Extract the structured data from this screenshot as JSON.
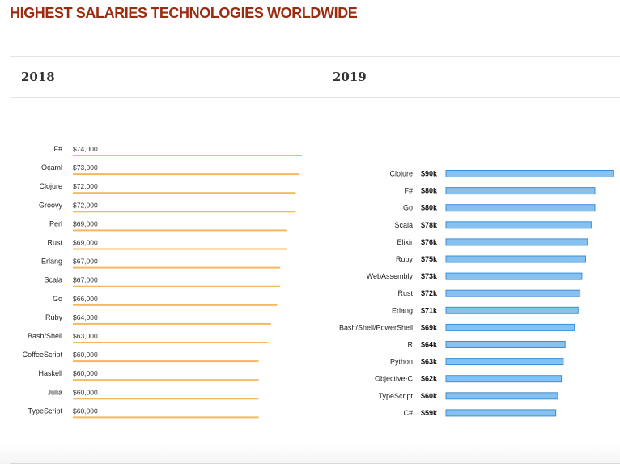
{
  "page": {
    "title": "HIGHEST SALARIES TECHNOLOGIES WORLDWIDE"
  },
  "colors": {
    "title": "#9b2c12",
    "bar_2018": "#f5b85f",
    "bar_2019_fill": "#86c1ef",
    "bar_2019_stroke": "#3d8fd8"
  },
  "chart_data": [
    {
      "type": "bar",
      "orientation": "horizontal",
      "title": "2018",
      "categories": [
        "F#",
        "Ocaml",
        "Clojure",
        "Groovy",
        "Perl",
        "Rust",
        "Erlang",
        "Scala",
        "Go",
        "Ruby",
        "Bash/Shell",
        "CoffeeScript",
        "Haskell",
        "Julia",
        "TypeScript"
      ],
      "values": [
        74000,
        73000,
        72000,
        72000,
        69000,
        69000,
        67000,
        67000,
        66000,
        64000,
        63000,
        60000,
        60000,
        60000,
        60000
      ],
      "value_labels": [
        "$74,000",
        "$73,000",
        "$72,000",
        "$72,000",
        "$69,000",
        "$69,000",
        "$67,000",
        "$67,000",
        "$66,000",
        "$64,000",
        "$63,000",
        "$60,000",
        "$60,000",
        "$60,000",
        "$60,000"
      ],
      "grid": false
    },
    {
      "type": "bar",
      "orientation": "horizontal",
      "title": "2019",
      "categories": [
        "Clojure",
        "F#",
        "Go",
        "Scala",
        "Elixir",
        "Ruby",
        "WebAssembly",
        "Rust",
        "Erlang",
        "Bash/Shell/PowerShell",
        "R",
        "Python",
        "Objective-C",
        "TypeScript",
        "C#"
      ],
      "values": [
        90,
        80,
        80,
        78,
        76,
        75,
        73,
        72,
        71,
        69,
        64,
        63,
        62,
        60,
        59
      ],
      "value_labels": [
        "$90k",
        "$80k",
        "$80k",
        "$78k",
        "$76k",
        "$75k",
        "$73k",
        "$72k",
        "$71k",
        "$69k",
        "$64k",
        "$63k",
        "$62k",
        "$60k",
        "$59k"
      ],
      "grid": false
    }
  ]
}
